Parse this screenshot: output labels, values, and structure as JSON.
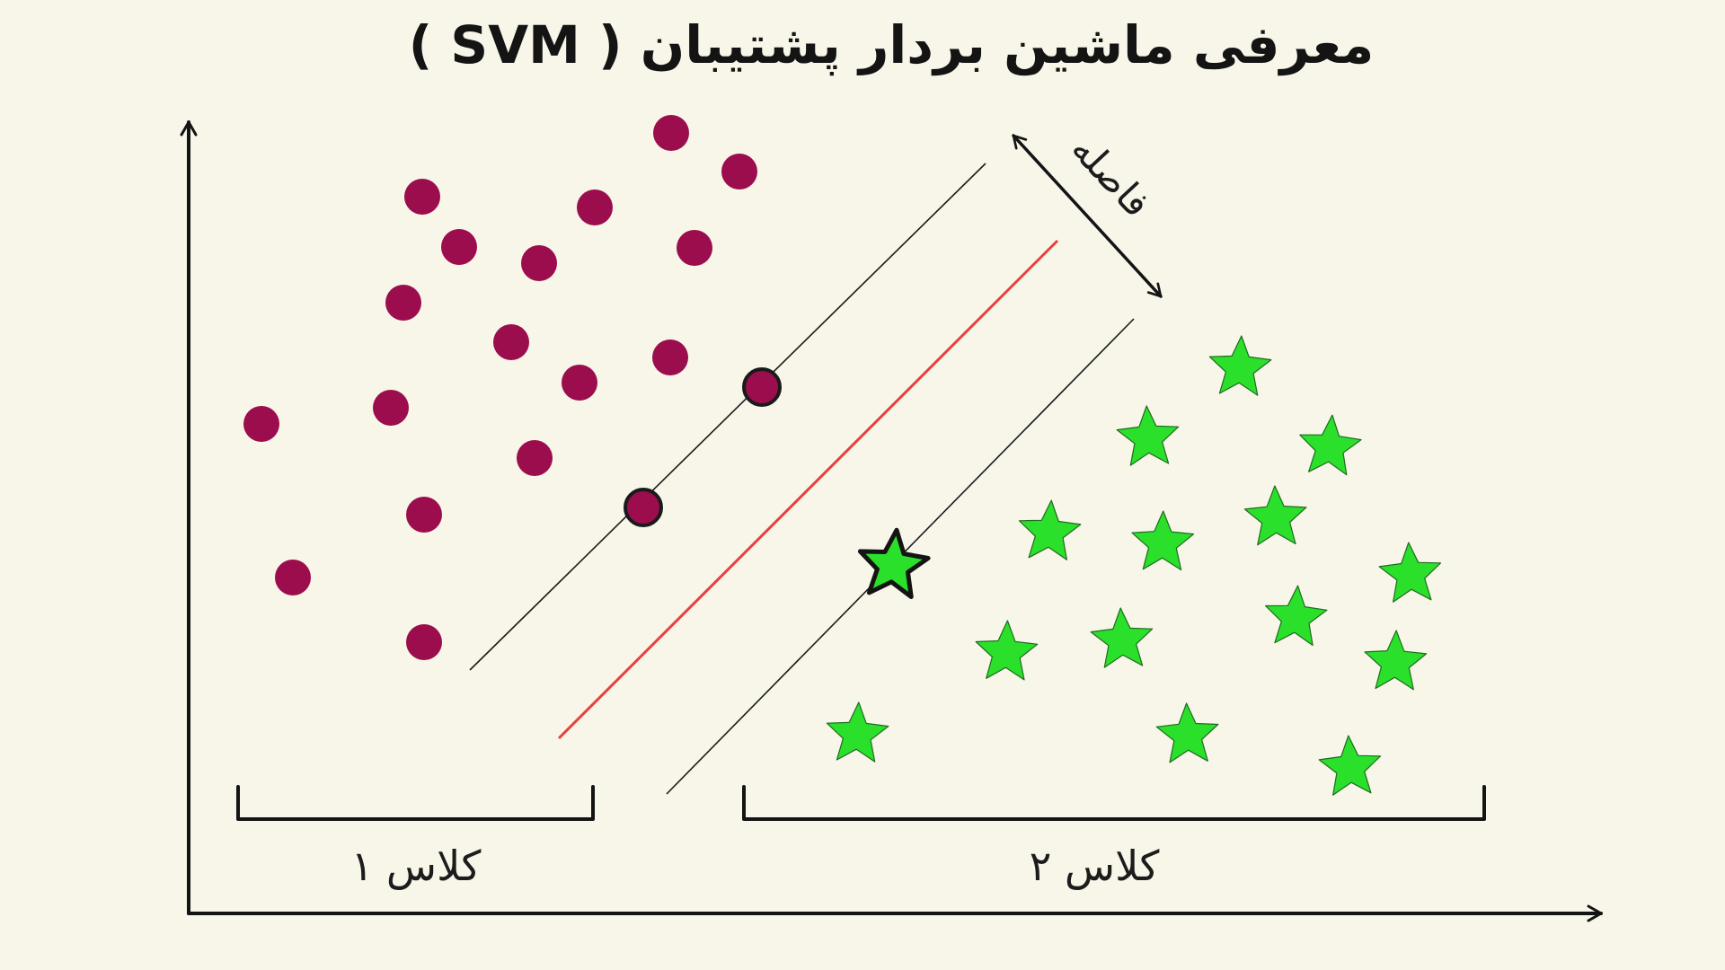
{
  "title": "معرفی ماشین بردار پشتیبان ( SVM )",
  "margin_label": "فاصله",
  "classes": [
    {
      "label": "کلاس ۱",
      "marker": "circle"
    },
    {
      "label": "کلاس ۲",
      "marker": "star"
    }
  ],
  "colors": {
    "background": "#f7f6e9",
    "class1_fill": "#9b0d4c",
    "class2_fill": "#2be02b",
    "hyperplane": "#e8403c",
    "margin_lines": "#1a1a1a",
    "axes": "#141414"
  },
  "icons": {
    "class1": "circle-marker-icon",
    "class2": "star-marker-icon",
    "margin": "double-arrow-icon"
  }
}
